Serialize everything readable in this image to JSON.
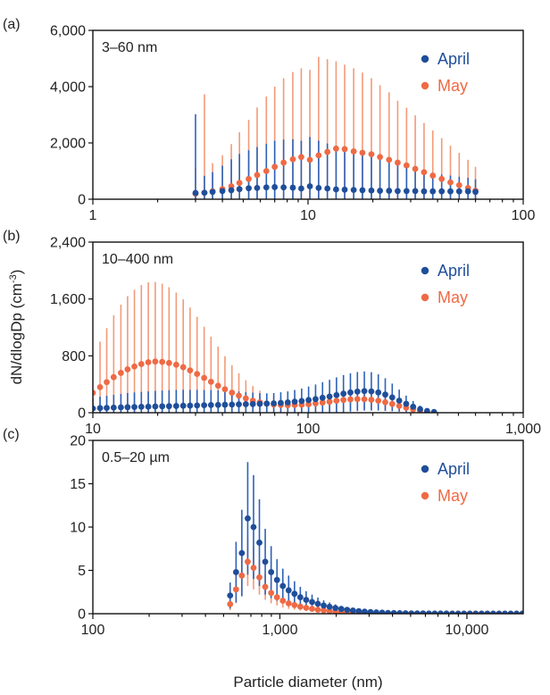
{
  "colors": {
    "april": "#1f4e9a",
    "may": "#ee6a45",
    "april_bar": "#2d62b8",
    "may_bar": "#f39a78"
  },
  "axes": {
    "ylabel": "dN/dlogDp (cm",
    "ylabel_sup": "-3",
    "ylabel_close": ")",
    "xlabel": "Particle diameter (nm)"
  },
  "chart_data": [
    {
      "type": "scatter",
      "panel_label": "(a)",
      "range_label": "3–60 nm",
      "x_scale": "log",
      "xlim": [
        1,
        100
      ],
      "ylim": [
        0,
        6000
      ],
      "x_ticks": [
        1,
        10,
        100
      ],
      "x_tick_labels": [
        "1",
        "10",
        "100"
      ],
      "y_ticks": [
        0,
        2000,
        4000,
        6000
      ],
      "y_tick_labels": [
        "0",
        "2,000",
        "4,000",
        "6,000"
      ],
      "legend": "top-right",
      "series": [
        {
          "name": "April",
          "color_key": "april",
          "x": [
            3.0,
            3.3,
            3.6,
            4.0,
            4.4,
            4.8,
            5.3,
            5.8,
            6.4,
            7.0,
            7.7,
            8.5,
            9.3,
            10.2,
            11.2,
            12.3,
            13.5,
            14.8,
            16.3,
            17.9,
            19.7,
            21.6,
            23.8,
            26.1,
            28.7,
            31.5,
            34.6,
            38.0,
            41.8,
            45.9,
            50.4,
            55.4,
            60.0
          ],
          "y": [
            220,
            230,
            260,
            290,
            320,
            360,
            390,
            400,
            420,
            430,
            420,
            410,
            380,
            460,
            400,
            380,
            350,
            340,
            330,
            320,
            310,
            300,
            300,
            290,
            290,
            290,
            280,
            280,
            280,
            280,
            280,
            280,
            260
          ],
          "err": [
            2800,
            600,
            700,
            900,
            1100,
            1250,
            1350,
            1450,
            1550,
            1650,
            1700,
            1720,
            1700,
            1750,
            1680,
            1600,
            1500,
            1420,
            1350,
            1280,
            1200,
            1100,
            1000,
            930,
            850,
            780,
            720,
            650,
            600,
            560,
            520,
            480,
            450
          ]
        },
        {
          "name": "May",
          "color_key": "may",
          "x": [
            3.0,
            3.3,
            3.6,
            4.0,
            4.4,
            4.8,
            5.3,
            5.8,
            6.4,
            7.0,
            7.7,
            8.5,
            9.3,
            10.2,
            11.2,
            12.3,
            13.5,
            14.8,
            16.3,
            17.9,
            19.7,
            21.6,
            23.8,
            26.1,
            28.7,
            31.5,
            34.6,
            38.0,
            41.8,
            45.9,
            50.4,
            55.4,
            60.0
          ],
          "y": [
            200,
            230,
            280,
            360,
            460,
            580,
            720,
            860,
            1000,
            1150,
            1300,
            1420,
            1500,
            1400,
            1560,
            1680,
            1800,
            1780,
            1700,
            1650,
            1600,
            1500,
            1400,
            1300,
            1200,
            1080,
            960,
            840,
            720,
            600,
            500,
            400,
            300
          ],
          "err": [
            900,
            3500,
            1000,
            1200,
            1500,
            1800,
            2100,
            2400,
            2650,
            2850,
            3000,
            3100,
            3150,
            3200,
            3500,
            3300,
            3100,
            3000,
            2950,
            2850,
            2700,
            2550,
            2400,
            2200,
            2050,
            1900,
            1750,
            1600,
            1450,
            1300,
            1150,
            1000,
            850
          ]
        }
      ]
    },
    {
      "type": "scatter",
      "panel_label": "(b)",
      "range_label": "10–400 nm",
      "x_scale": "log",
      "xlim": [
        10,
        1000
      ],
      "ylim": [
        0,
        2400
      ],
      "x_ticks": [
        10,
        100,
        1000
      ],
      "x_tick_labels": [
        "10",
        "100",
        "1,000"
      ],
      "y_ticks": [
        0,
        800,
        1600,
        2400
      ],
      "y_tick_labels": [
        "0",
        "800",
        "1,600",
        "2,400"
      ],
      "legend": "top-right",
      "series": [
        {
          "name": "April",
          "color_key": "april",
          "x": [
            10.0,
            10.8,
            11.6,
            12.5,
            13.5,
            14.5,
            15.6,
            16.8,
            18.1,
            19.5,
            21.0,
            22.6,
            24.4,
            26.3,
            28.3,
            30.5,
            32.9,
            35.4,
            38.2,
            41.1,
            44.3,
            47.7,
            51.4,
            55.4,
            59.7,
            64.3,
            69.3,
            74.7,
            80.5,
            86.7,
            93.4,
            100.6,
            108.4,
            116.8,
            125.9,
            135.6,
            146.1,
            157.4,
            169.6,
            182.7,
            196.9,
            212.1,
            228.5,
            246.2,
            265.3,
            285.8,
            307.9,
            331.8,
            357.5,
            385.1
          ],
          "y": [
            60,
            65,
            68,
            72,
            75,
            78,
            80,
            83,
            85,
            88,
            90,
            92,
            95,
            98,
            100,
            102,
            105,
            108,
            110,
            112,
            115,
            118,
            120,
            122,
            125,
            128,
            132,
            138,
            145,
            155,
            165,
            178,
            192,
            210,
            228,
            248,
            268,
            285,
            298,
            305,
            300,
            285,
            255,
            215,
            170,
            125,
            85,
            50,
            25,
            10
          ],
          "err": [
            150,
            160,
            170,
            180,
            190,
            200,
            205,
            210,
            215,
            220,
            222,
            225,
            225,
            225,
            222,
            220,
            215,
            210,
            205,
            200,
            190,
            180,
            170,
            160,
            150,
            145,
            145,
            150,
            155,
            165,
            175,
            190,
            205,
            220,
            235,
            250,
            262,
            270,
            275,
            275,
            270,
            255,
            230,
            195,
            155,
            115,
            80,
            50,
            25,
            10
          ]
        },
        {
          "name": "May",
          "color_key": "may",
          "x": [
            10.0,
            10.8,
            11.6,
            12.5,
            13.5,
            14.5,
            15.6,
            16.8,
            18.1,
            19.5,
            21.0,
            22.6,
            24.4,
            26.3,
            28.3,
            30.5,
            32.9,
            35.4,
            38.2,
            41.1,
            44.3,
            47.7,
            51.4,
            55.4,
            59.7,
            64.3,
            69.3,
            74.7,
            80.5,
            86.7,
            93.4,
            100.6,
            108.4,
            116.8,
            125.9,
            135.6,
            146.1,
            157.4,
            169.6,
            182.7,
            196.9,
            212.1,
            228.5,
            246.2,
            265.3,
            285.8,
            307.9,
            331.8,
            357.5,
            385.1
          ],
          "y": [
            280,
            360,
            430,
            500,
            560,
            610,
            650,
            685,
            710,
            720,
            715,
            700,
            675,
            640,
            595,
            545,
            490,
            435,
            380,
            330,
            282,
            240,
            202,
            170,
            145,
            128,
            115,
            108,
            105,
            108,
            112,
            120,
            130,
            142,
            155,
            168,
            180,
            188,
            192,
            190,
            182,
            168,
            148,
            123,
            96,
            70,
            46,
            26,
            12,
            4
          ],
          "err": [
            500,
            640,
            760,
            870,
            960,
            1030,
            1080,
            1110,
            1125,
            1120,
            1100,
            1065,
            1015,
            955,
            885,
            805,
            720,
            635,
            550,
            465,
            385,
            315,
            255,
            205,
            165,
            135,
            115,
            105,
            100,
            100,
            105,
            110,
            118,
            126,
            134,
            142,
            148,
            152,
            153,
            150,
            143,
            132,
            117,
            98,
            78,
            58,
            40,
            25,
            12,
            4
          ]
        }
      ]
    },
    {
      "type": "scatter",
      "panel_label": "(c)",
      "range_label": "0.5–20 µm",
      "x_scale": "log",
      "xlim": [
        100,
        20000
      ],
      "ylim": [
        0,
        20
      ],
      "x_ticks": [
        100,
        1000,
        10000
      ],
      "x_tick_labels": [
        "100",
        "1,000",
        "10,000"
      ],
      "y_ticks": [
        0,
        5,
        10,
        15,
        20
      ],
      "y_tick_labels": [
        "0",
        "5",
        "10",
        "15",
        "20"
      ],
      "legend": "top-right",
      "series": [
        {
          "name": "April",
          "color_key": "april",
          "x": [
            542,
            583,
            626,
            673,
            723,
            777,
            835,
            898,
            965,
            1037,
            1114,
            1197,
            1286,
            1382,
            1486,
            1596,
            1715,
            1843,
            1981,
            2129,
            2288,
            2458,
            2642,
            2839,
            3051,
            3278,
            3523,
            3786,
            4068,
            4372,
            4698,
            5048,
            5425,
            5830,
            6264,
            6731,
            7234,
            7773,
            8353,
            8976,
            9646,
            10366,
            11139,
            11970,
            12863,
            13822,
            14853,
            15961,
            17151,
            18431,
            19806
          ],
          "y": [
            2.1,
            4.8,
            7.0,
            11.0,
            10.0,
            8.2,
            6.0,
            4.8,
            3.9,
            3.2,
            2.7,
            2.3,
            1.9,
            1.6,
            1.35,
            1.15,
            0.95,
            0.8,
            0.66,
            0.55,
            0.45,
            0.37,
            0.3,
            0.24,
            0.19,
            0.15,
            0.12,
            0.09,
            0.07,
            0.06,
            0.05,
            0.04,
            0.03,
            0.03,
            0.02,
            0.02,
            0.02,
            0.02,
            0.01,
            0.01,
            0.01,
            0.01,
            0.01,
            0.01,
            0.01,
            0.01,
            0.01,
            0.01,
            0.01,
            0.01,
            0.01
          ],
          "err": [
            1.5,
            3.5,
            5.0,
            6.5,
            6.0,
            5.0,
            3.8,
            3.0,
            2.4,
            2.0,
            1.7,
            1.45,
            1.2,
            1.0,
            0.85,
            0.72,
            0.6,
            0.5,
            0.42,
            0.35,
            0.3,
            0.25,
            0.2,
            0.16,
            0.13,
            0.1,
            0.08,
            0.06,
            0.05,
            0.04,
            0.03,
            0.03,
            0.02,
            0.02,
            0.02,
            0.01,
            0.01,
            0.01,
            0.01,
            0.01,
            0.01,
            0.01,
            0.01,
            0.01,
            0.01,
            0.01,
            0.01,
            0.01,
            0.01,
            0.01,
            0.01
          ]
        },
        {
          "name": "May",
          "color_key": "may",
          "x": [
            542,
            583,
            626,
            673,
            723,
            777,
            835,
            898,
            965,
            1037,
            1114,
            1197,
            1286,
            1382,
            1486,
            1596,
            1715,
            1843,
            1981,
            2129,
            2288,
            2458,
            2642,
            2839,
            3051,
            3278,
            3523,
            3786,
            4068,
            4372,
            4698,
            5048,
            5425,
            5830,
            6264,
            6731,
            7234,
            7773,
            8353,
            8976,
            9646,
            10366,
            11139,
            11970,
            12863,
            13822,
            14853,
            15961,
            17151,
            18431,
            19806
          ],
          "y": [
            1.1,
            2.8,
            4.4,
            6.0,
            5.3,
            4.2,
            3.1,
            2.4,
            1.9,
            1.5,
            1.2,
            1.0,
            0.82,
            0.68,
            0.56,
            0.46,
            0.38,
            0.31,
            0.25,
            0.2,
            0.16,
            0.13,
            0.1,
            0.08,
            0.06,
            0.05,
            0.04,
            0.03,
            0.02,
            0.02,
            0.02,
            0.01,
            0.01,
            0.01,
            0.01,
            0.01,
            0.01,
            0.01,
            0.01,
            0.01,
            0.01,
            0.01,
            0.01,
            0.01,
            0.01,
            0.01,
            0.01,
            0.01,
            0.01,
            0.01,
            0.01
          ],
          "err": [
            0.7,
            1.6,
            2.2,
            2.8,
            2.5,
            2.0,
            1.5,
            1.2,
            0.95,
            0.78,
            0.64,
            0.54,
            0.45,
            0.37,
            0.31,
            0.26,
            0.22,
            0.18,
            0.15,
            0.12,
            0.1,
            0.08,
            0.06,
            0.05,
            0.04,
            0.03,
            0.03,
            0.02,
            0.02,
            0.01,
            0.01,
            0.01,
            0.01,
            0.01,
            0.01,
            0.01,
            0.01,
            0.01,
            0.01,
            0.01,
            0.01,
            0.01,
            0.01,
            0.01,
            0.01,
            0.01,
            0.01,
            0.01,
            0.01,
            0.01,
            0.01
          ]
        }
      ]
    }
  ]
}
